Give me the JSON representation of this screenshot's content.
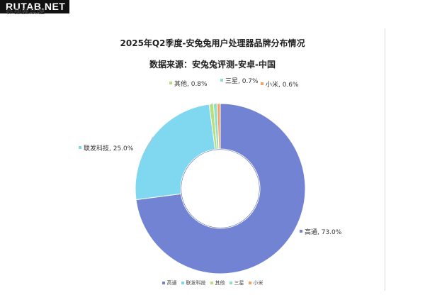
{
  "watermark": "RUTAB.NET",
  "cut_label": "处理器品牌",
  "chart_data": {
    "type": "pie",
    "title": "2025年Q2季度-安兔兔用户处理器品牌分布情况",
    "subtitle": "数据来源：安兔兔评测-安卓-中国",
    "categories": [
      "高通",
      "联发科技",
      "其他",
      "三星",
      "小米"
    ],
    "values": [
      73.0,
      25.0,
      0.8,
      0.7,
      0.6
    ],
    "data_labels": [
      "高通, 73.0%",
      "联发科技, 25.0%",
      "其他, 0.8%",
      "三星, 0.7%",
      "小米, 0.6%"
    ],
    "colors": [
      "#7283d4",
      "#7fd8f0",
      "#b6e07e",
      "#8fe0c9",
      "#f4a262"
    ],
    "legend_position": "bottom",
    "donut": true
  }
}
